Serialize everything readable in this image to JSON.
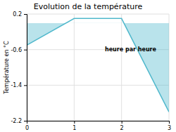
{
  "chart_data": {
    "type": "area",
    "title": "Evolution de la température",
    "ylabel": "Température en °C",
    "xlabel": "heure par heure",
    "x": [
      0,
      1,
      2,
      3
    ],
    "values": [
      -0.5,
      0.1,
      0.1,
      -2.0
    ],
    "color": "#50b8cc",
    "xlim": [
      0,
      3
    ],
    "ylim": [
      -2.2,
      0.2
    ],
    "xticks": [
      0,
      1,
      2,
      3
    ],
    "yticks": [
      0.2,
      -0.6,
      -1.4,
      -2.2
    ],
    "grid": true
  }
}
